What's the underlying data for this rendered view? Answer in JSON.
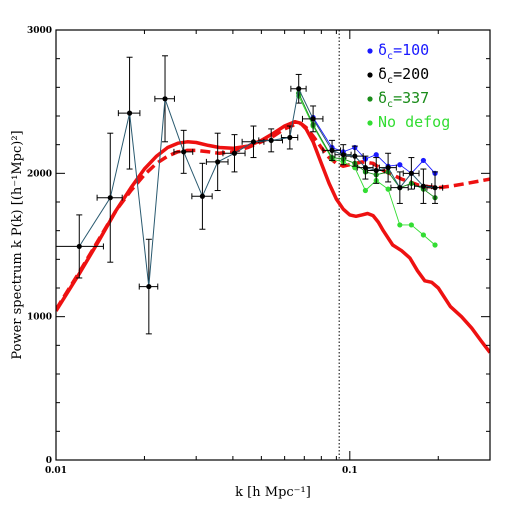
{
  "chart_data": {
    "type": "line",
    "xlabel": "k [h Mpc⁻¹]",
    "ylabel": "Power spectrum k P(k) [(h⁻¹Mpc)²]",
    "xscale": "log",
    "xlim": [
      0.01,
      0.3
    ],
    "ylim": [
      0,
      3000
    ],
    "xtick_labels": [
      {
        "value": 0.01,
        "label": "0.01"
      },
      {
        "value": 0.1,
        "label": "0.1"
      }
    ],
    "ytick_labels": [
      {
        "value": 0,
        "label": "0"
      },
      {
        "value": 1000,
        "label": "1000"
      },
      {
        "value": 2000,
        "label": "2000"
      },
      {
        "value": 3000,
        "label": "3000"
      }
    ],
    "vertical_line": {
      "x": 0.092,
      "style": "dotted",
      "color": "#000000"
    },
    "grid": false,
    "legend": {
      "position": "top-right",
      "entries": [
        {
          "prefix": "δ",
          "sub": "c",
          "suffix": "=100",
          "color": "#1a1aff"
        },
        {
          "prefix": "δ",
          "sub": "c",
          "suffix": "=200",
          "color": "#000000"
        },
        {
          "prefix": "δ",
          "sub": "c",
          "suffix": "=337",
          "color": "#1a8c1a"
        },
        {
          "prefix": "",
          "sub": "",
          "suffix": "No defog",
          "color": "#33dd33"
        }
      ]
    },
    "model_curves": [
      {
        "style": "solid",
        "color": "#ee1111",
        "x": [
          0.01,
          0.012,
          0.014,
          0.016,
          0.018,
          0.02,
          0.022,
          0.024,
          0.026,
          0.028,
          0.03,
          0.033,
          0.036,
          0.04,
          0.045,
          0.05,
          0.055,
          0.06,
          0.065,
          0.068,
          0.071,
          0.075,
          0.08,
          0.085,
          0.09,
          0.095,
          0.1,
          0.105,
          0.11,
          0.115,
          0.12,
          0.125,
          0.13,
          0.14,
          0.15,
          0.16,
          0.17,
          0.18,
          0.19,
          0.2,
          0.22,
          0.24,
          0.26,
          0.28,
          0.3
        ],
        "y": [
          1040,
          1300,
          1530,
          1740,
          1900,
          2030,
          2120,
          2180,
          2210,
          2220,
          2215,
          2195,
          2180,
          2175,
          2190,
          2230,
          2280,
          2330,
          2360,
          2350,
          2310,
          2220,
          2070,
          1930,
          1820,
          1750,
          1710,
          1700,
          1710,
          1720,
          1705,
          1660,
          1600,
          1500,
          1460,
          1410,
          1320,
          1250,
          1240,
          1200,
          1070,
          1000,
          920,
          830,
          750
        ]
      },
      {
        "style": "dashed",
        "color": "#ee1111",
        "x": [
          0.01,
          0.012,
          0.014,
          0.016,
          0.018,
          0.02,
          0.022,
          0.024,
          0.026,
          0.028,
          0.03,
          0.033,
          0.036,
          0.04,
          0.045,
          0.05,
          0.055,
          0.06,
          0.065,
          0.068,
          0.071,
          0.075,
          0.08,
          0.085,
          0.09,
          0.095,
          0.1,
          0.11,
          0.12,
          0.13,
          0.14,
          0.15,
          0.16,
          0.17,
          0.18,
          0.2,
          0.22,
          0.25,
          0.3
        ],
        "y": [
          1050,
          1310,
          1540,
          1740,
          1880,
          1990,
          2070,
          2120,
          2150,
          2160,
          2160,
          2150,
          2140,
          2150,
          2180,
          2220,
          2260,
          2310,
          2340,
          2350,
          2320,
          2260,
          2180,
          2110,
          2070,
          2050,
          2060,
          2080,
          2070,
          2020,
          1990,
          1960,
          1940,
          1920,
          1910,
          1900,
          1910,
          1930,
          1960
        ]
      }
    ],
    "series": [
      {
        "name": "δc=100",
        "color": "#1a1aff",
        "x": [
          0.075,
          0.087,
          0.095,
          0.104,
          0.113,
          0.123,
          0.135,
          0.148,
          0.162,
          0.178,
          0.195
        ],
        "y": [
          2390,
          2180,
          2150,
          2180,
          2100,
          2130,
          2050,
          2060,
          2000,
          2090,
          2000
        ]
      },
      {
        "name": "δc=200",
        "color": "#000000",
        "has_error_bars": true,
        "x": [
          0.012,
          0.0153,
          0.0178,
          0.0207,
          0.0235,
          0.0272,
          0.0315,
          0.0355,
          0.0405,
          0.047,
          0.054,
          0.0625,
          0.067,
          0.075,
          0.087,
          0.095,
          0.104,
          0.113,
          0.123,
          0.135,
          0.148,
          0.162,
          0.178,
          0.195
        ],
        "y": [
          1490,
          1830,
          2420,
          1210,
          2520,
          2150,
          1840,
          2080,
          2140,
          2220,
          2230,
          2250,
          2590,
          2380,
          2160,
          2130,
          2120,
          2040,
          2020,
          2040,
          1900,
          2000,
          1910,
          1900
        ],
        "x_err": [
          0.0025,
          0.0015,
          0.0015,
          0.0015,
          0.0018,
          0.002,
          0.0025,
          0.003,
          0.0035,
          0.004,
          0.005,
          0.004,
          0.004,
          0.006,
          0.006,
          0.006,
          0.007,
          0.007,
          0.008,
          0.009,
          0.01,
          0.01,
          0.012,
          0.012
        ],
        "y_err": [
          220,
          450,
          390,
          330,
          300,
          150,
          230,
          200,
          130,
          110,
          80,
          80,
          100,
          90,
          70,
          70,
          70,
          80,
          90,
          100,
          110,
          110,
          120,
          110
        ]
      },
      {
        "name": "δc=337",
        "color": "#1a8c1a",
        "x": [
          0.067,
          0.075,
          0.087,
          0.095,
          0.104,
          0.113,
          0.123,
          0.135,
          0.148,
          0.162,
          0.178,
          0.195
        ],
        "y": [
          2560,
          2340,
          2110,
          2100,
          2070,
          2010,
          1990,
          2010,
          1900,
          1930,
          1890,
          1830
        ]
      },
      {
        "name": "No defog",
        "color": "#33dd33",
        "x": [
          0.067,
          0.075,
          0.087,
          0.095,
          0.104,
          0.113,
          0.123,
          0.135,
          0.148,
          0.162,
          0.178,
          0.195
        ],
        "y": [
          2540,
          2330,
          2100,
          2080,
          2040,
          1880,
          1950,
          1890,
          1640,
          1640,
          1570,
          1500
        ]
      }
    ]
  }
}
